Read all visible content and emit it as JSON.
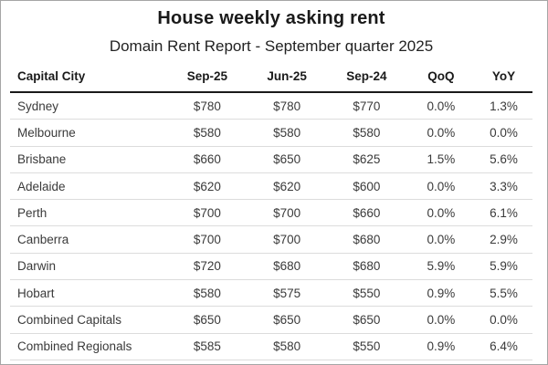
{
  "title": "House weekly asking rent",
  "subtitle": "Domain Rent Report - September quarter 2025",
  "table": {
    "columns": [
      "Capital City",
      "Sep-25",
      "Jun-25",
      "Sep-24",
      "QoQ",
      "YoY"
    ],
    "rows": [
      [
        "Sydney",
        "$780",
        "$780",
        "$770",
        "0.0%",
        "1.3%"
      ],
      [
        "Melbourne",
        "$580",
        "$580",
        "$580",
        "0.0%",
        "0.0%"
      ],
      [
        "Brisbane",
        "$660",
        "$650",
        "$625",
        "1.5%",
        "5.6%"
      ],
      [
        "Adelaide",
        "$620",
        "$620",
        "$600",
        "0.0%",
        "3.3%"
      ],
      [
        "Perth",
        "$700",
        "$700",
        "$660",
        "0.0%",
        "6.1%"
      ],
      [
        "Canberra",
        "$700",
        "$700",
        "$680",
        "0.0%",
        "2.9%"
      ],
      [
        "Darwin",
        "$720",
        "$680",
        "$680",
        "5.9%",
        "5.9%"
      ],
      [
        "Hobart",
        "$580",
        "$575",
        "$550",
        "0.9%",
        "5.5%"
      ],
      [
        "Combined Capitals",
        "$650",
        "$650",
        "$650",
        "0.0%",
        "0.0%"
      ],
      [
        "Combined Regionals",
        "$585",
        "$580",
        "$550",
        "0.9%",
        "6.4%"
      ]
    ]
  },
  "colors": {
    "background": "#ffffff",
    "outer_border": "#a6a6a6",
    "header_rule": "#1a1a1a",
    "row_divider": "#dcdcdc",
    "heading_text": "#1a1a1a",
    "body_text": "#3a3a3a"
  },
  "chart_data": {
    "type": "table",
    "title": "House weekly asking rent",
    "subtitle": "Domain Rent Report - September quarter 2025",
    "columns": [
      "Capital City",
      "Sep-25",
      "Jun-25",
      "Sep-24",
      "QoQ",
      "YoY"
    ],
    "rows": [
      {
        "capital_city": "Sydney",
        "sep_25": 780,
        "jun_25": 780,
        "sep_24": 770,
        "qoq_pct": 0.0,
        "yoy_pct": 1.3
      },
      {
        "capital_city": "Melbourne",
        "sep_25": 580,
        "jun_25": 580,
        "sep_24": 580,
        "qoq_pct": 0.0,
        "yoy_pct": 0.0
      },
      {
        "capital_city": "Brisbane",
        "sep_25": 660,
        "jun_25": 650,
        "sep_24": 625,
        "qoq_pct": 1.5,
        "yoy_pct": 5.6
      },
      {
        "capital_city": "Adelaide",
        "sep_25": 620,
        "jun_25": 620,
        "sep_24": 600,
        "qoq_pct": 0.0,
        "yoy_pct": 3.3
      },
      {
        "capital_city": "Perth",
        "sep_25": 700,
        "jun_25": 700,
        "sep_24": 660,
        "qoq_pct": 0.0,
        "yoy_pct": 6.1
      },
      {
        "capital_city": "Canberra",
        "sep_25": 700,
        "jun_25": 700,
        "sep_24": 680,
        "qoq_pct": 0.0,
        "yoy_pct": 2.9
      },
      {
        "capital_city": "Darwin",
        "sep_25": 720,
        "jun_25": 680,
        "sep_24": 680,
        "qoq_pct": 5.9,
        "yoy_pct": 5.9
      },
      {
        "capital_city": "Hobart",
        "sep_25": 580,
        "jun_25": 575,
        "sep_24": 550,
        "qoq_pct": 0.9,
        "yoy_pct": 5.5
      },
      {
        "capital_city": "Combined Capitals",
        "sep_25": 650,
        "jun_25": 650,
        "sep_24": 650,
        "qoq_pct": 0.0,
        "yoy_pct": 0.0
      },
      {
        "capital_city": "Combined Regionals",
        "sep_25": 585,
        "jun_25": 580,
        "sep_24": 550,
        "qoq_pct": 0.9,
        "yoy_pct": 6.4
      }
    ],
    "units": {
      "rent_columns": "AUD per week",
      "change_columns": "percent"
    }
  }
}
